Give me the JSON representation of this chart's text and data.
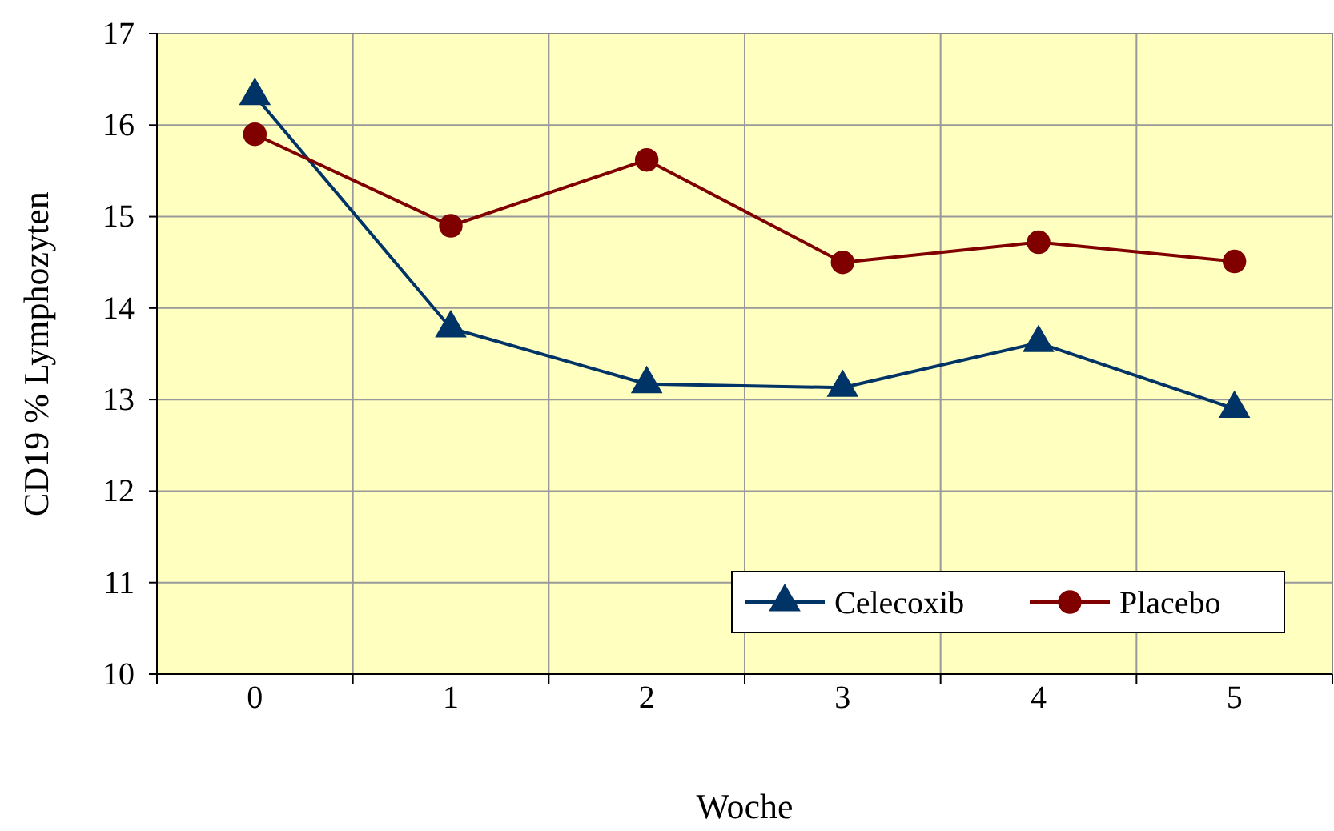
{
  "chart_data": {
    "type": "line",
    "xlabel": "Woche",
    "ylabel": "CD19 % Lymphozyten",
    "categories": [
      "0",
      "1",
      "2",
      "3",
      "4",
      "5"
    ],
    "series": [
      {
        "name": "Celecoxib",
        "color": "#003366",
        "marker": "triangle",
        "values": [
          16.32,
          13.78,
          13.17,
          13.13,
          13.62,
          12.9
        ]
      },
      {
        "name": "Placebo",
        "color": "#800000",
        "marker": "circle",
        "values": [
          15.9,
          14.9,
          15.62,
          14.5,
          14.72,
          14.51
        ]
      }
    ],
    "ylim": [
      10,
      17
    ],
    "yticks": [
      10,
      11,
      12,
      13,
      14,
      15,
      16,
      17
    ],
    "grid": true,
    "legend": "bottom right"
  }
}
